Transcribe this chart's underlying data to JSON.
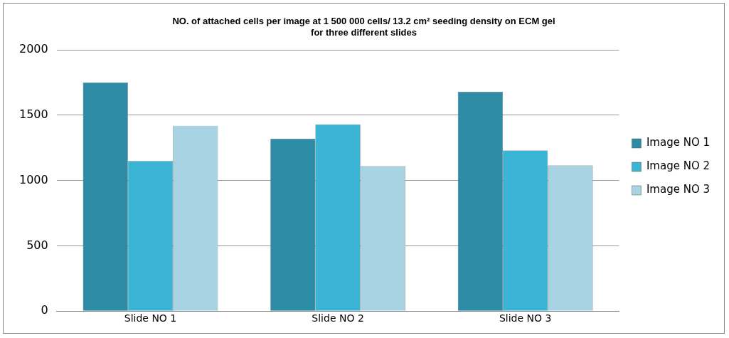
{
  "chart_data": {
    "type": "bar",
    "title": [
      "NO. of attached cells per image at 1 500 000 cells/ 13.2 cm² seeding density on ECM gel",
      "for three different slides"
    ],
    "categories": [
      "Slide NO 1",
      "Slide NO 2",
      "Slide NO 3"
    ],
    "series": [
      {
        "name": "Image NO 1",
        "color": "#2e8ba6",
        "values": [
          1750,
          1320,
          1680
        ]
      },
      {
        "name": "Image NO 2",
        "color": "#3ab5d6",
        "values": [
          1150,
          1430,
          1230
        ]
      },
      {
        "name": "Image NO 3",
        "color": "#a7d3e3",
        "values": [
          1420,
          1110,
          1115
        ]
      }
    ],
    "ylim": [
      0,
      2000
    ],
    "yticks": [
      0,
      500,
      1000,
      1500,
      2000
    ],
    "grid": "y",
    "legend": "right"
  }
}
